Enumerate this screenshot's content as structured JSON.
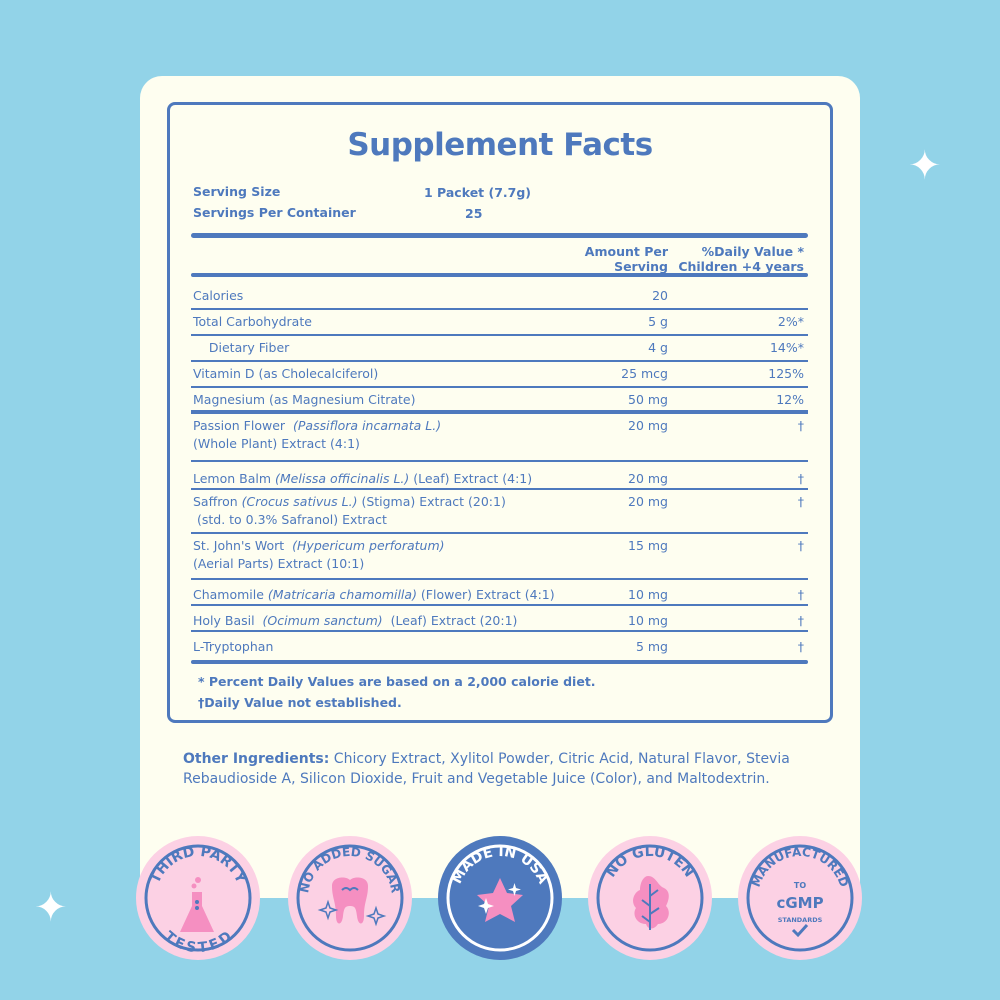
{
  "title": "Supplement Facts",
  "serving": {
    "size_label": "Serving Size",
    "size_value": "1 Packet (7.7g)",
    "per_label": "Servings Per Container",
    "per_value": "25"
  },
  "header": {
    "amount": [
      "Amount Per",
      "Serving"
    ],
    "dv": [
      "%Daily Value *",
      "Children +4 years"
    ]
  },
  "rows": [
    {
      "lines": [
        [
          {
            "t": "Calories"
          }
        ]
      ],
      "amount": "20",
      "dv": "",
      "h": 26
    },
    {
      "lines": [
        [
          {
            "t": "Total Carbohydrate"
          }
        ]
      ],
      "amount": "5 g",
      "dv": "2%*",
      "h": 26
    },
    {
      "lines": [
        [
          {
            "t": "    Dietary Fiber"
          }
        ]
      ],
      "amount": "4 g",
      "dv": "14%*",
      "h": 26,
      "indent": true
    },
    {
      "lines": [
        [
          {
            "t": "Vitamin D (as Cholecalciferol)"
          }
        ]
      ],
      "amount": "25 mcg",
      "dv": "125%",
      "h": 26
    },
    {
      "lines": [
        [
          {
            "t": "Magnesium (as Magnesium Citrate)"
          }
        ]
      ],
      "amount": "50 mg",
      "dv": "12%",
      "h": 26
    },
    {
      "lines": [
        [
          {
            "t": "Passion Flower  "
          },
          {
            "t": "(Passiflora incarnata L.)",
            "i": true
          }
        ],
        [
          {
            "t": "(Whole Plant) Extract (4:1)"
          }
        ]
      ],
      "amount": "20 mg",
      "dv": "†",
      "h": 48,
      "thick": true
    },
    {
      "lines": [
        [
          {
            "t": "Lemon Balm "
          },
          {
            "t": "(Melissa officinalis L.)",
            "i": true
          },
          {
            "t": " (Leaf) Extract (4:1)"
          }
        ]
      ],
      "amount": "20 mg",
      "dv": "†",
      "h": 28,
      "at": "8px"
    },
    {
      "lines": [
        [
          {
            "t": "Saffron "
          },
          {
            "t": "(Crocus sativus L.)",
            "i": true
          },
          {
            "t": " (Stigma) Extract (20:1)"
          }
        ],
        [
          {
            "t": " (std. to 0.3% Safranol) Extract"
          }
        ]
      ],
      "amount": "20 mg",
      "dv": "†",
      "h": 44
    },
    {
      "lines": [
        [
          {
            "t": "St. John's Wort  "
          },
          {
            "t": "(Hypericum perforatum)",
            "i": true
          }
        ],
        [
          {
            "t": "(Aerial Parts) Extract (10:1)"
          }
        ]
      ],
      "amount": "15 mg",
      "dv": "†",
      "h": 46
    },
    {
      "lines": [
        [
          {
            "t": "Chamomile "
          },
          {
            "t": "(Matricaria chamomilla)",
            "i": true
          },
          {
            "t": " (Flower) Extract (4:1)"
          }
        ]
      ],
      "amount": "10 mg",
      "dv": "†",
      "h": 26,
      "at": "6px"
    },
    {
      "lines": [
        [
          {
            "t": "Holy Basil  "
          },
          {
            "t": "(Ocimum sanctum)",
            "i": true
          },
          {
            "t": "  (Leaf) Extract (20:1)"
          }
        ]
      ],
      "amount": "10 mg",
      "dv": "†",
      "h": 26,
      "at": "6px"
    },
    {
      "lines": [
        [
          {
            "t": "L-Tryptophan"
          }
        ]
      ],
      "amount": "5 mg",
      "dv": "†",
      "h": 30,
      "at": "6px"
    }
  ],
  "footnotes": [
    "* Percent Daily Values are based on a 2,000 calorie diet.",
    "†Daily Value not established."
  ],
  "other_ingredients": {
    "label": "Other Ingredients:",
    "text": " Chicory Extract, Xylitol Powder, Citric Acid, Natural Flavor, Stevia Rebaudioside A, Silicon Dioxide, Fruit and Vegetable Juice (Color), and Maltodextrin."
  },
  "badges": [
    {
      "top": "THIRD PARTY",
      "bottom": "TESTED",
      "icon": "flask-icon",
      "style": "pink"
    },
    {
      "top": "NO ADDED SUGAR",
      "bottom": "",
      "icon": "tooth-icon",
      "style": "pink"
    },
    {
      "top": "MADE IN USA",
      "bottom": "",
      "icon": "star-icon",
      "style": "blue"
    },
    {
      "top": "NO GLUTEN",
      "bottom": "",
      "icon": "leaf-icon",
      "style": "pink"
    },
    {
      "top": "MANUFACTURED",
      "bottom": "",
      "center": [
        "TO",
        "cGMP",
        "STANDARDS"
      ],
      "icon": "check-icon",
      "style": "pink"
    }
  ],
  "colors": {
    "background": "#92d3e8",
    "card": "#fefef0",
    "blue": "#4e79bd",
    "pink": "#fcd1e4",
    "pink_accent": "#f58fc1"
  }
}
